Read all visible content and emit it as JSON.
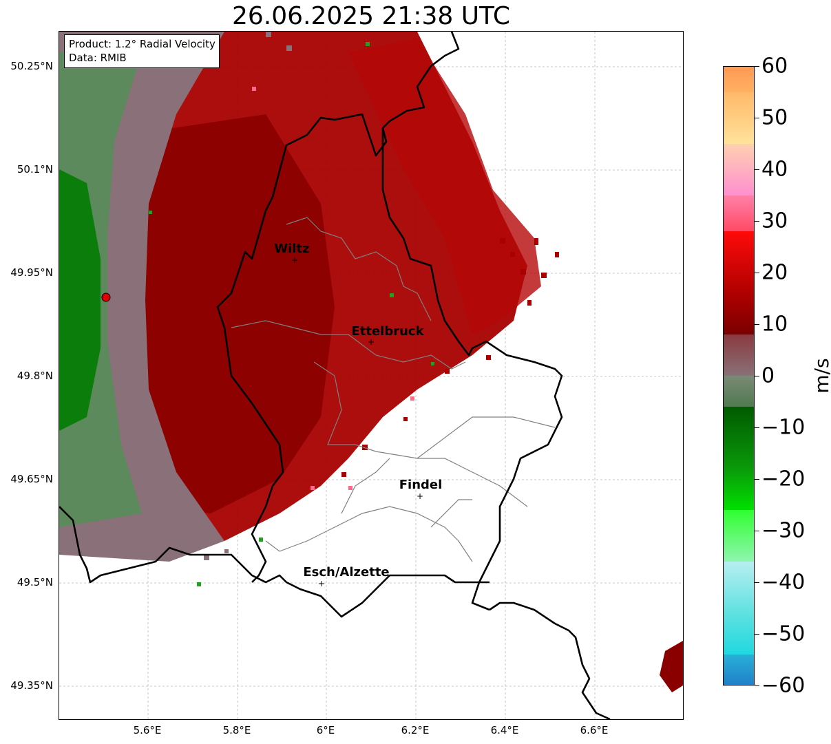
{
  "title": "26.06.2025 21:38 UTC",
  "info": {
    "product": "Product: 1.2° Radial Velocity",
    "data_source": "Data: RMIB"
  },
  "axes": {
    "lat_ticks": [
      "50.25°N",
      "50.1°N",
      "49.95°N",
      "49.8°N",
      "49.65°N",
      "49.5°N",
      "49.35°N"
    ],
    "lon_ticks": [
      "5.6°E",
      "5.8°E",
      "6°E",
      "6.2°E",
      "6.4°E",
      "6.6°E"
    ]
  },
  "cities": [
    {
      "name": "Wiltz"
    },
    {
      "name": "Ettelbruck"
    },
    {
      "name": "Findel"
    },
    {
      "name": "Esch/Alzette"
    }
  ],
  "colorbar": {
    "unit": "m/s",
    "min": -60,
    "max": 60,
    "tick_labels": [
      "60",
      "50",
      "40",
      "30",
      "20",
      "10",
      "0",
      "−10",
      "−20",
      "−30",
      "−40",
      "−50",
      "−60"
    ]
  },
  "colors": {
    "strong_inbound": "#0a7d0a",
    "weak_inbound": "#5c8a5c",
    "near_zero": "#8a7078",
    "outbound": "#a80000",
    "radar_site": "#e00000"
  }
}
